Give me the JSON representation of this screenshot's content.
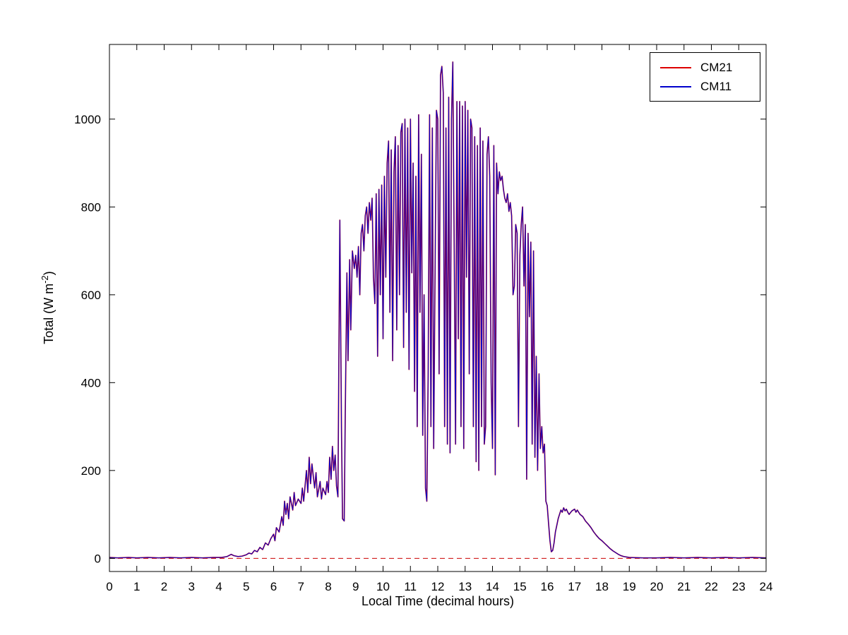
{
  "figure": {
    "background": "#ffffff"
  },
  "chart_data": {
    "type": "line",
    "title": "",
    "xlabel": "Local Time (decimal hours)",
    "ylabel": "Total (W m^-2)",
    "ylabel_parts": [
      "Total (W m",
      "-2",
      ")"
    ],
    "xlim": [
      0,
      24
    ],
    "ylim": [
      -30,
      1170
    ],
    "xticks": [
      0,
      1,
      2,
      3,
      4,
      5,
      6,
      7,
      8,
      9,
      10,
      11,
      12,
      13,
      14,
      15,
      16,
      17,
      18,
      19,
      20,
      21,
      22,
      23,
      24
    ],
    "yticks": [
      0,
      200,
      400,
      600,
      800,
      1000
    ],
    "grid": false,
    "axes_box": true,
    "tick_direction": "in",
    "legend": {
      "position": "top-right",
      "border_color": "#000000",
      "background": "#ffffff"
    },
    "zero_line": {
      "y": 0,
      "color": "#cc0000",
      "style": "dashed"
    },
    "series": [
      {
        "name": "CM21",
        "color": "#dd0000",
        "line_width": 1.7
      },
      {
        "name": "CM11",
        "color": "#0000cc",
        "line_width": 1.0
      }
    ],
    "shared_values_note": "CM21 and CM11 curves overlap almost exactly; CM11 (blue) is drawn over CM21 (red)",
    "x": [
      0,
      0.3,
      0.7,
      1,
      1.4,
      1.8,
      2.2,
      2.6,
      3,
      3.4,
      3.8,
      4.1,
      4.3,
      4.45,
      4.55,
      4.7,
      4.85,
      5,
      5.1,
      5.2,
      5.3,
      5.4,
      5.5,
      5.6,
      5.7,
      5.8,
      5.9,
      6,
      6.05,
      6.1,
      6.2,
      6.3,
      6.35,
      6.4,
      6.45,
      6.5,
      6.55,
      6.6,
      6.7,
      6.75,
      6.8,
      6.9,
      7,
      7.05,
      7.1,
      7.2,
      7.25,
      7.3,
      7.35,
      7.4,
      7.5,
      7.55,
      7.6,
      7.7,
      7.75,
      7.8,
      7.9,
      7.95,
      8,
      8.05,
      8.1,
      8.15,
      8.2,
      8.25,
      8.3,
      8.35,
      8.42,
      8.48,
      8.52,
      8.58,
      8.62,
      8.68,
      8.72,
      8.78,
      8.82,
      8.88,
      8.95,
      9,
      9.05,
      9.1,
      9.15,
      9.2,
      9.25,
      9.3,
      9.35,
      9.4,
      9.45,
      9.5,
      9.55,
      9.6,
      9.65,
      9.7,
      9.75,
      9.8,
      9.85,
      9.9,
      9.95,
      10,
      10.05,
      10.1,
      10.15,
      10.2,
      10.25,
      10.3,
      10.35,
      10.4,
      10.45,
      10.5,
      10.55,
      10.6,
      10.65,
      10.7,
      10.75,
      10.8,
      10.85,
      10.9,
      10.95,
      11,
      11.05,
      11.1,
      11.15,
      11.2,
      11.25,
      11.3,
      11.35,
      11.4,
      11.45,
      11.5,
      11.55,
      11.6,
      11.65,
      11.7,
      11.75,
      11.8,
      11.85,
      11.9,
      11.95,
      12,
      12.05,
      12.1,
      12.15,
      12.2,
      12.25,
      12.3,
      12.35,
      12.4,
      12.45,
      12.5,
      12.55,
      12.6,
      12.65,
      12.7,
      12.75,
      12.8,
      12.85,
      12.9,
      12.95,
      13,
      13.05,
      13.1,
      13.15,
      13.2,
      13.25,
      13.3,
      13.35,
      13.4,
      13.45,
      13.5,
      13.55,
      13.6,
      13.65,
      13.7,
      13.75,
      13.8,
      13.85,
      13.9,
      13.95,
      14,
      14.05,
      14.1,
      14.15,
      14.2,
      14.25,
      14.3,
      14.35,
      14.4,
      14.45,
      14.5,
      14.55,
      14.6,
      14.65,
      14.7,
      14.75,
      14.8,
      14.85,
      14.9,
      14.95,
      15,
      15.05,
      15.1,
      15.15,
      15.2,
      15.25,
      15.3,
      15.35,
      15.4,
      15.45,
      15.5,
      15.55,
      15.6,
      15.65,
      15.7,
      15.75,
      15.8,
      15.85,
      15.9,
      15.95,
      16,
      16.05,
      16.1,
      16.15,
      16.2,
      16.25,
      16.3,
      16.35,
      16.4,
      16.45,
      16.5,
      16.55,
      16.6,
      16.65,
      16.7,
      16.75,
      16.8,
      16.9,
      17,
      17.05,
      17.1,
      17.2,
      17.3,
      17.4,
      17.5,
      17.6,
      17.7,
      17.8,
      17.9,
      18,
      18.1,
      18.2,
      18.3,
      18.4,
      18.5,
      18.6,
      18.7,
      18.8,
      19,
      19.5,
      20,
      20.5,
      21,
      21.5,
      22,
      22.5,
      23,
      23.5,
      24
    ],
    "values": [
      2,
      1,
      2,
      1,
      2,
      1,
      2,
      1,
      2,
      1,
      2,
      2,
      4,
      9,
      6,
      4,
      5,
      8,
      12,
      10,
      18,
      15,
      25,
      20,
      35,
      30,
      45,
      55,
      40,
      70,
      60,
      95,
      75,
      130,
      100,
      125,
      90,
      140,
      110,
      150,
      120,
      135,
      125,
      160,
      130,
      200,
      150,
      230,
      170,
      215,
      160,
      195,
      140,
      175,
      135,
      160,
      145,
      175,
      150,
      230,
      180,
      255,
      200,
      235,
      165,
      140,
      770,
      300,
      90,
      85,
      330,
      650,
      450,
      680,
      520,
      700,
      660,
      690,
      640,
      710,
      600,
      740,
      760,
      700,
      780,
      800,
      740,
      810,
      770,
      820,
      640,
      580,
      830,
      460,
      840,
      600,
      850,
      500,
      870,
      640,
      900,
      950,
      560,
      930,
      450,
      880,
      960,
      520,
      940,
      600,
      970,
      990,
      480,
      1000,
      560,
      980,
      430,
      1000,
      650,
      900,
      380,
      870,
      300,
      1010,
      560,
      920,
      280,
      600,
      160,
      130,
      420,
      1010,
      300,
      980,
      250,
      640,
      1020,
      1000,
      420,
      1100,
      1120,
      1060,
      300,
      980,
      260,
      1050,
      240,
      1000,
      1130,
      700,
      260,
      1040,
      500,
      1040,
      300,
      1030,
      250,
      1040,
      640,
      1020,
      420,
      1000,
      980,
      300,
      960,
      220,
      940,
      200,
      980,
      300,
      950,
      260,
      300,
      920,
      960,
      870,
      400,
      250,
      940,
      190,
      900,
      830,
      880,
      860,
      870,
      840,
      820,
      810,
      830,
      790,
      810,
      780,
      600,
      620,
      760,
      740,
      300,
      690,
      760,
      800,
      620,
      760,
      180,
      740,
      550,
      720,
      260,
      700,
      230,
      460,
      200,
      420,
      250,
      300,
      240,
      260,
      130,
      120,
      80,
      40,
      15,
      18,
      35,
      60,
      75,
      90,
      100,
      110,
      105,
      115,
      108,
      112,
      105,
      100,
      108,
      112,
      105,
      110,
      100,
      95,
      85,
      78,
      70,
      60,
      52,
      45,
      40,
      34,
      28,
      22,
      17,
      13,
      9,
      6,
      4,
      2,
      1,
      1,
      2,
      1,
      2,
      1,
      2,
      1,
      2,
      1
    ]
  }
}
